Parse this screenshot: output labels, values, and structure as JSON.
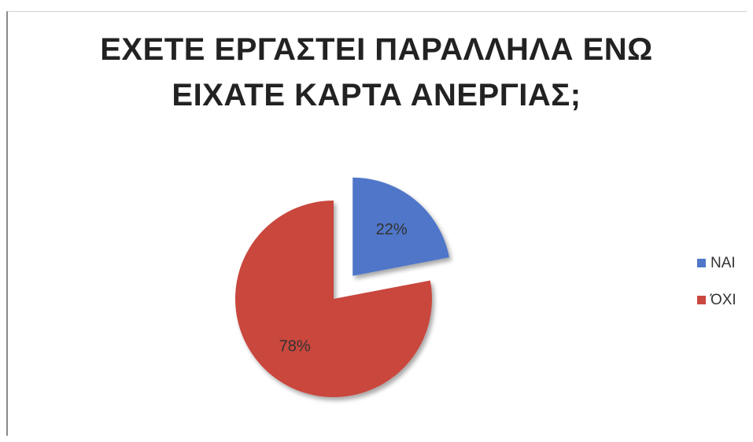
{
  "chart_data": {
    "type": "pie",
    "title_lines": [
      "ΕΧΕΤΕ ΕΡΓΑΣΤΕΙ ΠΑΡΑΛΛΗΛΑ ΕΝΩ",
      "ΕΙΧΑΤΕ ΚΑΡΤΑ ΑΝΕΡΓΙΑΣ;"
    ],
    "slices": [
      {
        "label": "ΝΑΙ",
        "value": 22,
        "display": "22%",
        "color": "#4f76c8",
        "exploded": true
      },
      {
        "label": "ΌΧΙ",
        "value": 78,
        "display": "78%",
        "color": "#c9473e",
        "exploded": false
      }
    ],
    "legend_position": "right"
  }
}
